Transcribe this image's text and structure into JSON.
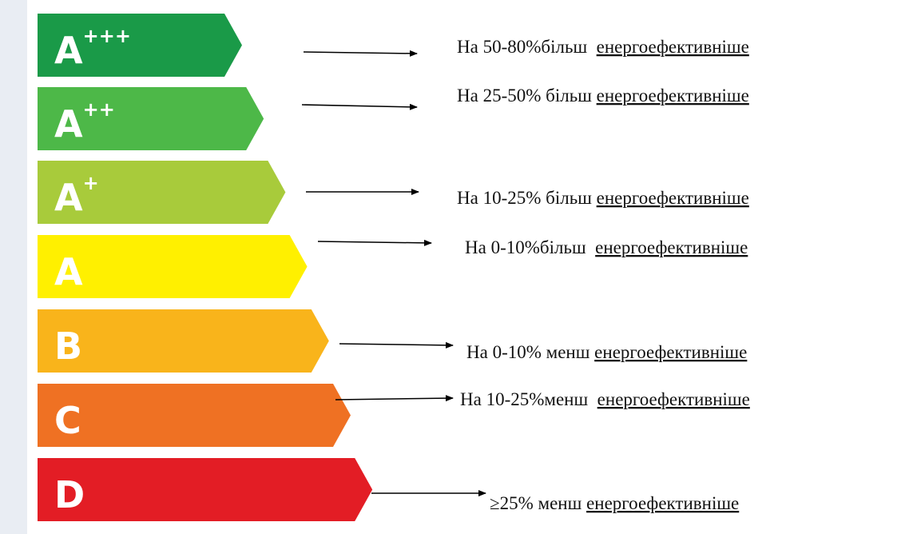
{
  "classes": [
    {
      "letter": "A",
      "sup": "+++",
      "color": "#1a9a48",
      "prefix": "На 50-80%більш  ",
      "highlight": "енергоефективніше"
    },
    {
      "letter": "A",
      "sup": "++",
      "color": "#4db848",
      "prefix": "На 25-50% більш ",
      "highlight": "енергоефективніше"
    },
    {
      "letter": "A",
      "sup": "+",
      "color": "#a8cb3b",
      "prefix": "На 10-25% більш ",
      "highlight": "енергоефективніше"
    },
    {
      "letter": "A",
      "sup": null,
      "color": "#fff000",
      "prefix": "На 0-10%більш  ",
      "highlight": "енергоефективніше"
    },
    {
      "letter": "B",
      "sup": null,
      "color": "#f9b41b",
      "prefix": "На 0-10% менш ",
      "highlight": "енергоефективніше"
    },
    {
      "letter": "C",
      "sup": null,
      "color": "#ef7123",
      "prefix": "На 10-25%менш  ",
      "highlight": "енергоефективніше"
    },
    {
      "letter": "D",
      "sup": null,
      "color": "#e31d25",
      "prefix": "≥25% менш ",
      "highlight": "енергоефективніше"
    }
  ]
}
